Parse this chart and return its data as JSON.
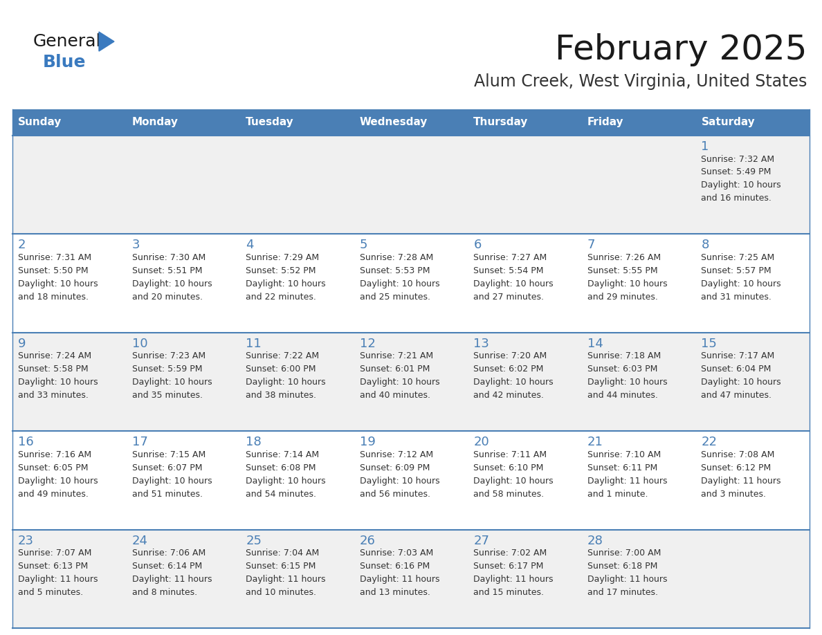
{
  "title": "February 2025",
  "subtitle": "Alum Creek, West Virginia, United States",
  "header_bg_color": "#4a7fb5",
  "header_text_color": "#ffffff",
  "day_names": [
    "Sunday",
    "Monday",
    "Tuesday",
    "Wednesday",
    "Thursday",
    "Friday",
    "Saturday"
  ],
  "row_bg_even": "#f0f0f0",
  "row_bg_odd": "#ffffff",
  "cell_border_color": "#4a7fb5",
  "title_color": "#1a1a1a",
  "subtitle_color": "#333333",
  "day_number_color": "#4a7fb5",
  "cell_text_color": "#333333",
  "logo_general_color": "#1a1a1a",
  "logo_blue_color": "#3a7abf",
  "calendar_data": [
    [
      null,
      null,
      null,
      null,
      null,
      null,
      {
        "day": 1,
        "sunrise": "7:32 AM",
        "sunset": "5:49 PM",
        "daylight": "10 hours and 16 minutes."
      }
    ],
    [
      {
        "day": 2,
        "sunrise": "7:31 AM",
        "sunset": "5:50 PM",
        "daylight": "10 hours and 18 minutes."
      },
      {
        "day": 3,
        "sunrise": "7:30 AM",
        "sunset": "5:51 PM",
        "daylight": "10 hours and 20 minutes."
      },
      {
        "day": 4,
        "sunrise": "7:29 AM",
        "sunset": "5:52 PM",
        "daylight": "10 hours and 22 minutes."
      },
      {
        "day": 5,
        "sunrise": "7:28 AM",
        "sunset": "5:53 PM",
        "daylight": "10 hours and 25 minutes."
      },
      {
        "day": 6,
        "sunrise": "7:27 AM",
        "sunset": "5:54 PM",
        "daylight": "10 hours and 27 minutes."
      },
      {
        "day": 7,
        "sunrise": "7:26 AM",
        "sunset": "5:55 PM",
        "daylight": "10 hours and 29 minutes."
      },
      {
        "day": 8,
        "sunrise": "7:25 AM",
        "sunset": "5:57 PM",
        "daylight": "10 hours and 31 minutes."
      }
    ],
    [
      {
        "day": 9,
        "sunrise": "7:24 AM",
        "sunset": "5:58 PM",
        "daylight": "10 hours and 33 minutes."
      },
      {
        "day": 10,
        "sunrise": "7:23 AM",
        "sunset": "5:59 PM",
        "daylight": "10 hours and 35 minutes."
      },
      {
        "day": 11,
        "sunrise": "7:22 AM",
        "sunset": "6:00 PM",
        "daylight": "10 hours and 38 minutes."
      },
      {
        "day": 12,
        "sunrise": "7:21 AM",
        "sunset": "6:01 PM",
        "daylight": "10 hours and 40 minutes."
      },
      {
        "day": 13,
        "sunrise": "7:20 AM",
        "sunset": "6:02 PM",
        "daylight": "10 hours and 42 minutes."
      },
      {
        "day": 14,
        "sunrise": "7:18 AM",
        "sunset": "6:03 PM",
        "daylight": "10 hours and 44 minutes."
      },
      {
        "day": 15,
        "sunrise": "7:17 AM",
        "sunset": "6:04 PM",
        "daylight": "10 hours and 47 minutes."
      }
    ],
    [
      {
        "day": 16,
        "sunrise": "7:16 AM",
        "sunset": "6:05 PM",
        "daylight": "10 hours and 49 minutes."
      },
      {
        "day": 17,
        "sunrise": "7:15 AM",
        "sunset": "6:07 PM",
        "daylight": "10 hours and 51 minutes."
      },
      {
        "day": 18,
        "sunrise": "7:14 AM",
        "sunset": "6:08 PM",
        "daylight": "10 hours and 54 minutes."
      },
      {
        "day": 19,
        "sunrise": "7:12 AM",
        "sunset": "6:09 PM",
        "daylight": "10 hours and 56 minutes."
      },
      {
        "day": 20,
        "sunrise": "7:11 AM",
        "sunset": "6:10 PM",
        "daylight": "10 hours and 58 minutes."
      },
      {
        "day": 21,
        "sunrise": "7:10 AM",
        "sunset": "6:11 PM",
        "daylight": "11 hours and 1 minute."
      },
      {
        "day": 22,
        "sunrise": "7:08 AM",
        "sunset": "6:12 PM",
        "daylight": "11 hours and 3 minutes."
      }
    ],
    [
      {
        "day": 23,
        "sunrise": "7:07 AM",
        "sunset": "6:13 PM",
        "daylight": "11 hours and 5 minutes."
      },
      {
        "day": 24,
        "sunrise": "7:06 AM",
        "sunset": "6:14 PM",
        "daylight": "11 hours and 8 minutes."
      },
      {
        "day": 25,
        "sunrise": "7:04 AM",
        "sunset": "6:15 PM",
        "daylight": "11 hours and 10 minutes."
      },
      {
        "day": 26,
        "sunrise": "7:03 AM",
        "sunset": "6:16 PM",
        "daylight": "11 hours and 13 minutes."
      },
      {
        "day": 27,
        "sunrise": "7:02 AM",
        "sunset": "6:17 PM",
        "daylight": "11 hours and 15 minutes."
      },
      {
        "day": 28,
        "sunrise": "7:00 AM",
        "sunset": "6:18 PM",
        "daylight": "11 hours and 17 minutes."
      },
      null
    ]
  ]
}
